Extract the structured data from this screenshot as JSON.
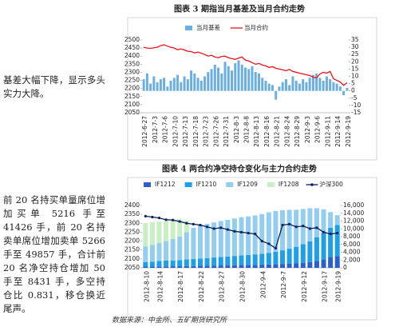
{
  "text": {
    "para1": "基差大幅下降，显示多头实力大降。",
    "para2": "前 20 名持买单量席位增加买单 5216 手至 41426 手，前 20 名持卖单席位增加卖单 5266 手至 49857 手，合计前 20 名净空持仓增加 50 手至 8431 手，多空持仓比 0.831，移仓换近尾声。",
    "source": "数据来源：中金所、五矿期货研究所"
  },
  "chart_data": [
    {
      "type": "bar-line",
      "title": "图表 3  期指当月基差及当月合约走势",
      "categories": [
        "2012-6-27",
        null,
        null,
        "2012-7-3",
        null,
        null,
        "2012-7-6",
        null,
        null,
        "2012-7-10",
        null,
        null,
        "2012-7-13",
        null,
        null,
        "2012-7-18",
        null,
        null,
        "2012-7-23",
        null,
        null,
        "2012-7-26",
        null,
        null,
        "2012-7-31",
        null,
        null,
        "2012-8-3",
        null,
        null,
        "2012-8-8",
        null,
        null,
        "2012-8-13",
        null,
        null,
        "2012-8-16",
        null,
        null,
        "2012-8-21",
        null,
        null,
        "2012-8-24",
        null,
        null,
        "2012-8-29",
        null,
        null,
        "2012-9-3",
        null,
        null,
        "2012-9-6",
        null,
        null,
        "2012-9-11",
        null,
        null,
        "2012-9-14",
        null,
        null,
        "2012-9-19"
      ],
      "series": [
        {
          "name": "当月基差",
          "kind": "bar",
          "axis": "y2",
          "color": "#6aaee2",
          "values": [
            8,
            12,
            5,
            10,
            6,
            8,
            9,
            3,
            7,
            9,
            11,
            6,
            10,
            8,
            14,
            12,
            9,
            7,
            10,
            13,
            15,
            18,
            16,
            12,
            20,
            17,
            14,
            19,
            21,
            18,
            16,
            15,
            17,
            13,
            12,
            9,
            7,
            5,
            4,
            -6,
            3,
            6,
            8,
            4,
            10,
            7,
            5,
            8,
            6,
            9,
            11,
            12,
            9,
            7,
            10,
            8,
            6,
            5,
            3,
            -3,
            2
          ]
        },
        {
          "name": "当月合约",
          "kind": "line",
          "color": "#e8141c",
          "values": [
            2455,
            2450,
            2448,
            2452,
            2455,
            2465,
            2470,
            2462,
            2455,
            2450,
            2440,
            2445,
            2438,
            2430,
            2428,
            2420,
            2425,
            2418,
            2410,
            2400,
            2405,
            2395,
            2390,
            2398,
            2400,
            2390,
            2385,
            2380,
            2388,
            2395,
            2375,
            2370,
            2360,
            2350,
            2355,
            2345,
            2340,
            2330,
            2335,
            2325,
            2320,
            2315,
            2310,
            2318,
            2305,
            2300,
            2295,
            2290,
            2285,
            2280,
            2270,
            2265,
            2290,
            2300,
            2295,
            2305,
            2260,
            2250,
            2240,
            2220,
            2235
          ]
        }
      ],
      "ylim": [
        2050,
        2500
      ],
      "yticks": [
        2050,
        2100,
        2150,
        2200,
        2250,
        2300,
        2350,
        2400,
        2450,
        2500
      ],
      "y2lim": [
        -15,
        35
      ],
      "y2ticks": [
        -15,
        -10,
        -5,
        0,
        5,
        10,
        15,
        20,
        25,
        30,
        35
      ]
    },
    {
      "type": "stacked-bar-line",
      "title": "图表 4  两合约净空持仓变化与主力合约走势",
      "categories": [
        "2012-8-10",
        null,
        "2012-8-14",
        null,
        null,
        "2012-8-17",
        null,
        null,
        "2012-8-22",
        null,
        null,
        "2012-8-27",
        null,
        null,
        "2012-8-30",
        null,
        null,
        "2012-9-4",
        null,
        null,
        "2012-9-7",
        null,
        null,
        "2012-9-12",
        null,
        null,
        "2012-9-17",
        null,
        "2012-9-19"
      ],
      "series": [
        {
          "name": "IF1212",
          "kind": "bar",
          "axis": "y2",
          "color": "#2b5fc9",
          "values": [
            300,
            300,
            350,
            350,
            400,
            400,
            450,
            450,
            500,
            500,
            550,
            600,
            600,
            650,
            700,
            700,
            750,
            800,
            850,
            900,
            1000,
            1100,
            1200,
            1300,
            1500,
            1800,
            2200,
            2800,
            3000
          ]
        },
        {
          "name": "IF1210",
          "kind": "bar",
          "axis": "y2",
          "color": "#1fa0e6",
          "values": [
            1200,
            1300,
            1400,
            1500,
            1500,
            1600,
            1700,
            1800,
            1900,
            2000,
            2100,
            2200,
            2300,
            2400,
            2500,
            2600,
            2700,
            2800,
            3000,
            3200,
            3500,
            3800,
            4200,
            4800,
            5300,
            6000,
            6800,
            7500,
            8000
          ]
        },
        {
          "name": "IF1209",
          "kind": "bar",
          "axis": "y2",
          "color": "#93cdf0",
          "values": [
            4000,
            4300,
            4600,
            5000,
            5500,
            6000,
            7000,
            8000,
            8500,
            8800,
            9000,
            9200,
            9400,
            9600,
            9800,
            9900,
            10000,
            10200,
            10400,
            10500,
            10300,
            10000,
            9500,
            9000,
            8500,
            7500,
            6000,
            4000,
            2500
          ]
        },
        {
          "name": "IF1208",
          "kind": "bar",
          "axis": "y2",
          "color": "#c8efc4",
          "values": [
            6000,
            5800,
            5500,
            5200,
            5000,
            4500,
            3000,
            0,
            0,
            0,
            0,
            0,
            0,
            0,
            0,
            0,
            0,
            0,
            0,
            0,
            0,
            0,
            0,
            0,
            0,
            0,
            0,
            0,
            0
          ]
        },
        {
          "name": "沪深300",
          "kind": "line",
          "color": "#0d1f5c",
          "values": [
            2340,
            2335,
            2330,
            2320,
            2318,
            2310,
            2300,
            2295,
            2290,
            2280,
            2270,
            2275,
            2265,
            2255,
            2250,
            2245,
            2240,
            2200,
            2185,
            2160,
            2290,
            2295,
            2280,
            2285,
            2270,
            2275,
            2250,
            2240,
            2245
          ]
        }
      ],
      "ylim": [
        2050,
        2400
      ],
      "yticks": [
        2050,
        2100,
        2150,
        2200,
        2250,
        2300,
        2350,
        2400
      ],
      "y2lim": [
        0,
        16000
      ],
      "y2ticks": [
        0,
        {
          "value": 2000,
          "label": "2,000"
        },
        {
          "value": 4000,
          "label": "4,000"
        },
        {
          "value": 6000,
          "label": "6,000"
        },
        {
          "value": 8000,
          "label": "8,000"
        },
        {
          "value": 10000,
          "label": "10,000"
        },
        {
          "value": 12000,
          "label": "12,000"
        },
        {
          "value": 14000,
          "label": "14,000"
        },
        {
          "value": 16000,
          "label": "16,000"
        }
      ]
    }
  ]
}
